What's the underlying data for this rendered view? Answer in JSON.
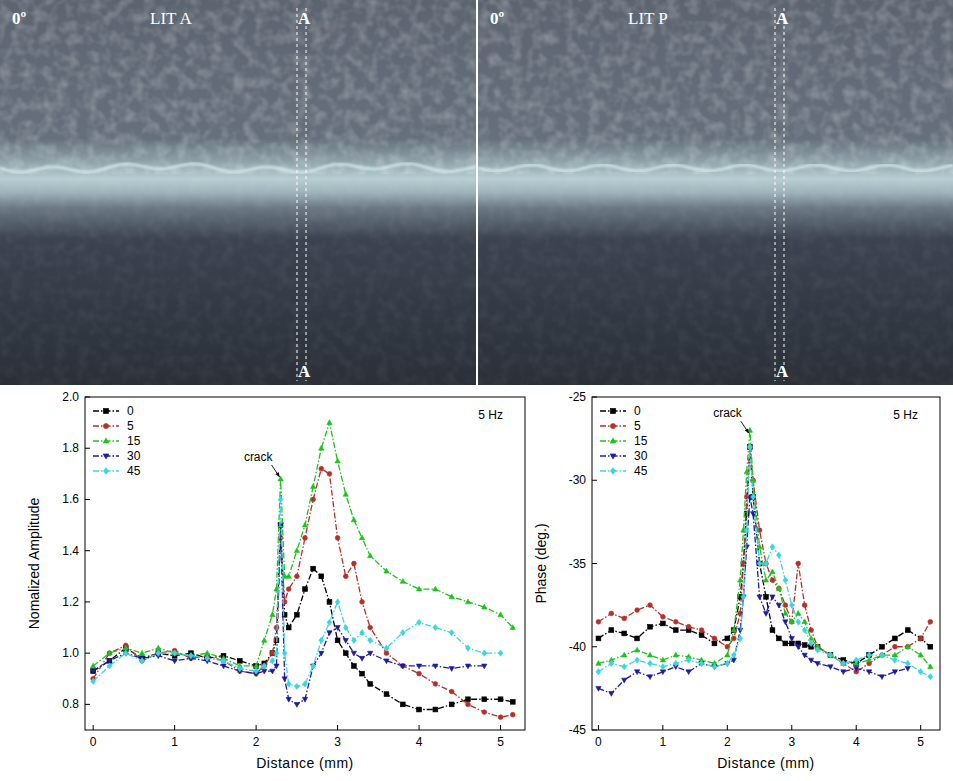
{
  "images": [
    {
      "angle": "0º",
      "title": "LIT A",
      "section_top": "A",
      "section_bottom": "A"
    },
    {
      "angle": "0º",
      "title": "LIT P",
      "section_top": "A",
      "section_bottom": "A"
    }
  ],
  "chart_data": [
    {
      "type": "line",
      "xlabel": "Distance (mm)",
      "ylabel": "Nomalized Amplitude",
      "xlim": [
        -0.1,
        5.3
      ],
      "ylim": [
        0.7,
        2.0
      ],
      "xticks": [
        0,
        1,
        2,
        3,
        4,
        5
      ],
      "yticks": [
        0.8,
        {
          "value": 1,
          "label": "1.0"
        },
        1.2,
        1.4,
        1.6,
        1.8,
        {
          "value": 2,
          "label": "2.0"
        }
      ],
      "grid": false,
      "legend": "upper left",
      "line_style": "dashdot",
      "annotations": [
        {
          "text": "crack",
          "x": 2.3,
          "y": 1.68
        },
        {
          "text": "5 Hz"
        }
      ],
      "x": [
        0,
        0.2,
        0.4,
        0.6,
        0.8,
        1.0,
        1.2,
        1.4,
        1.6,
        1.8,
        2.0,
        2.1,
        2.2,
        2.25,
        2.3,
        2.35,
        2.4,
        2.5,
        2.6,
        2.7,
        2.8,
        2.9,
        3.0,
        3.1,
        3.2,
        3.3,
        3.4,
        3.6,
        3.8,
        4.0,
        4.2,
        4.4,
        4.6,
        4.8,
        5.0,
        5.15
      ],
      "series": [
        {
          "name": "0",
          "color": "#000000",
          "marker": "square",
          "values": [
            0.93,
            0.97,
            1.02,
            0.98,
            1.0,
            0.99,
            1.0,
            0.98,
            0.99,
            0.97,
            0.95,
            0.96,
            1.0,
            1.05,
            1.5,
            1.15,
            1.1,
            1.15,
            1.25,
            1.33,
            1.3,
            1.2,
            1.05,
            1.0,
            0.95,
            0.92,
            0.88,
            0.84,
            0.8,
            0.78,
            0.78,
            0.8,
            0.82,
            0.82,
            0.82,
            0.81
          ]
        },
        {
          "name": "5",
          "color": "#b5302a",
          "marker": "circle",
          "values": [
            0.9,
            1.0,
            1.03,
            0.97,
            1.0,
            1.01,
            0.98,
            0.99,
            0.97,
            0.93,
            0.92,
            0.95,
            1.0,
            1.1,
            1.45,
            1.2,
            1.25,
            1.3,
            1.45,
            1.6,
            1.72,
            1.7,
            1.45,
            1.3,
            1.35,
            1.2,
            1.1,
            1.0,
            0.95,
            0.92,
            0.88,
            0.85,
            0.8,
            0.77,
            0.75,
            0.76
          ]
        },
        {
          "name": "15",
          "color": "#1ec21e",
          "marker": "triangle-up",
          "values": [
            0.95,
            1.0,
            1.02,
            1.0,
            1.02,
            1.0,
            0.99,
            1.0,
            0.98,
            0.95,
            0.95,
            1.05,
            1.15,
            1.25,
            1.68,
            1.3,
            1.3,
            1.4,
            1.5,
            1.65,
            1.8,
            1.9,
            1.75,
            1.62,
            1.52,
            1.45,
            1.38,
            1.32,
            1.28,
            1.25,
            1.25,
            1.22,
            1.2,
            1.18,
            1.15,
            1.1
          ]
        },
        {
          "name": "30",
          "color": "#1c1c9c",
          "marker": "triangle-down",
          "values": [
            0.93,
            0.97,
            1.0,
            0.98,
            0.99,
            0.97,
            0.98,
            0.97,
            0.95,
            0.93,
            0.92,
            0.93,
            0.93,
            0.95,
            1.5,
            0.9,
            0.82,
            0.8,
            0.82,
            0.95,
            1.0,
            1.08,
            1.1,
            1.05,
            1.0,
            0.98,
            1.0,
            0.97,
            0.95,
            0.95,
            0.95,
            0.94,
            0.95,
            0.95,
            null,
            null
          ]
        },
        {
          "name": "45",
          "color": "#3ad6e0",
          "marker": "diamond",
          "values": [
            0.89,
            0.95,
            1.0,
            0.97,
            1.0,
            1.0,
            0.99,
            0.98,
            0.97,
            0.94,
            0.93,
            0.95,
            0.97,
            1.0,
            1.6,
            1.0,
            0.88,
            0.87,
            0.88,
            0.95,
            1.05,
            1.12,
            1.2,
            1.1,
            1.05,
            1.08,
            1.05,
            1.02,
            1.08,
            1.12,
            1.1,
            1.08,
            1.02,
            1.0,
            1.0,
            null
          ]
        }
      ]
    },
    {
      "type": "line",
      "xlabel": "Distance (mm)",
      "ylabel": "Phase (deg.)",
      "xlim": [
        -0.1,
        5.3
      ],
      "ylim": [
        -45,
        -25
      ],
      "xticks": [
        0,
        1,
        2,
        3,
        4,
        5
      ],
      "yticks": [
        -45,
        -40,
        -35,
        -30,
        -25
      ],
      "grid": false,
      "legend": "upper left",
      "line_style": "dashdot",
      "annotations": [
        {
          "text": "crack",
          "x": 2.35,
          "y": -27.3
        },
        {
          "text": "5 Hz"
        }
      ],
      "x": [
        0,
        0.2,
        0.4,
        0.6,
        0.8,
        1.0,
        1.2,
        1.4,
        1.6,
        1.8,
        2.0,
        2.1,
        2.2,
        2.25,
        2.3,
        2.35,
        2.4,
        2.5,
        2.6,
        2.7,
        2.8,
        2.9,
        3.0,
        3.1,
        3.2,
        3.3,
        3.4,
        3.6,
        3.8,
        4.0,
        4.2,
        4.4,
        4.6,
        4.8,
        5.0,
        5.15
      ],
      "series": [
        {
          "name": "0",
          "color": "#000000",
          "marker": "square",
          "values": [
            -39.5,
            -39,
            -39.2,
            -39.5,
            -38.8,
            -38.6,
            -39,
            -39,
            -39.3,
            -39.8,
            -39.5,
            -39,
            -37,
            -35,
            -32,
            -28,
            -31,
            -35,
            -37,
            -39,
            -39.5,
            -39.8,
            -39.8,
            -39.8,
            -39.9,
            -40,
            -40,
            -40.5,
            -40.8,
            -41,
            -40.5,
            -40,
            -39.5,
            -39,
            -39.5,
            -40
          ]
        },
        {
          "name": "5",
          "color": "#b5302a",
          "marker": "circle",
          "values": [
            -38.5,
            -38,
            -38.3,
            -37.8,
            -37.5,
            -38.2,
            -38.5,
            -38.8,
            -39,
            -39.5,
            -40,
            -39.5,
            -38,
            -35,
            -31,
            -28,
            -30,
            -33,
            -35,
            -36,
            -36.5,
            -37.5,
            -38.5,
            -35,
            -37.5,
            -39,
            -40,
            -40.5,
            -41,
            -41.5,
            -41,
            -40.5,
            -40,
            -40,
            -39.5,
            -38.5
          ]
        },
        {
          "name": "15",
          "color": "#1ec21e",
          "marker": "triangle-up",
          "values": [
            -41,
            -40.8,
            -40.5,
            -40.2,
            -40.5,
            -40.8,
            -40.5,
            -40.6,
            -40.8,
            -41,
            -40.5,
            -39,
            -36,
            -33,
            -29.5,
            -27,
            -30,
            -34,
            -36,
            -35.5,
            -36.5,
            -38,
            -38.5,
            -38,
            -38.5,
            -39.5,
            -40,
            -40.5,
            -41,
            -41,
            -40.8,
            -40.5,
            -40.5,
            -40,
            -40.5,
            -41.2
          ]
        },
        {
          "name": "30",
          "color": "#1c1c9c",
          "marker": "triangle-down",
          "values": [
            -42.5,
            -42.8,
            -42,
            -41.5,
            -41.8,
            -41.5,
            -41.2,
            -41.5,
            -41,
            -41.2,
            -41,
            -40.8,
            -39,
            -37,
            -34,
            -31,
            -32,
            -37,
            -38,
            -37,
            -37.5,
            -38.5,
            -39.5,
            -40,
            -40.5,
            -40.8,
            -41,
            -41.2,
            -41.5,
            -41.3,
            -41.5,
            -41.8,
            -41.5,
            -41.3,
            null,
            null
          ]
        },
        {
          "name": "45",
          "color": "#3ad6e0",
          "marker": "diamond",
          "values": [
            -41.5,
            -41,
            -41.2,
            -40.8,
            -41,
            -41.2,
            -41,
            -40.8,
            -41,
            -41.2,
            -41,
            -40.5,
            -39.5,
            -37,
            -33,
            -28,
            -31,
            -35,
            -35,
            -34,
            -34.5,
            -36,
            -37.5,
            -38.5,
            -39,
            -39.8,
            -40.2,
            -40.5,
            -41,
            -40.8,
            -40.5,
            -40.5,
            -40.8,
            -41,
            -41.5,
            -41.8
          ]
        }
      ]
    }
  ]
}
